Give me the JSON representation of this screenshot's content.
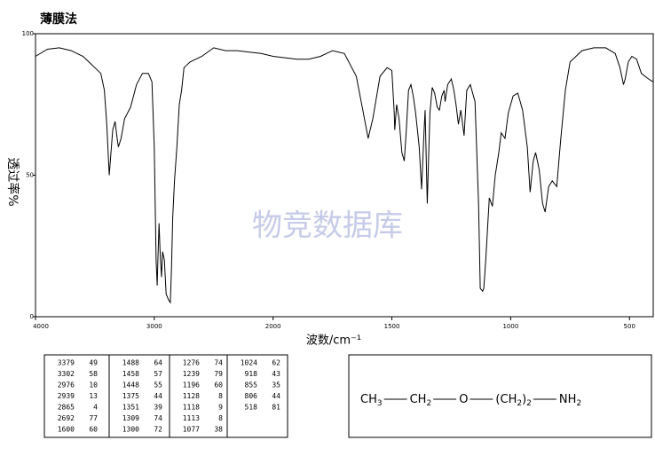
{
  "chart_data": {
    "type": "line",
    "title": "薄膜法",
    "ylabel": "透过率%",
    "xlabel": "波数/cm⁻¹",
    "watermark": "物竞数据库",
    "color": "#000000",
    "xlim": [
      4000,
      400
    ],
    "x_scale_change_at": 2000,
    "xticks": [
      4000,
      3000,
      2000,
      1500,
      1000,
      500
    ],
    "ylim": [
      0,
      100
    ],
    "yticks": [
      0,
      50,
      100
    ],
    "x": [
      4000,
      3900,
      3800,
      3700,
      3600,
      3550,
      3500,
      3450,
      3420,
      3400,
      3385,
      3379,
      3370,
      3350,
      3330,
      3310,
      3302,
      3280,
      3250,
      3200,
      3150,
      3100,
      3050,
      3020,
      3000,
      2985,
      2976,
      2970,
      2960,
      2950,
      2939,
      2930,
      2915,
      2900,
      2880,
      2865,
      2855,
      2845,
      2830,
      2810,
      2790,
      2770,
      2750,
      2700,
      2650,
      2600,
      2500,
      2400,
      2300,
      2200,
      2100,
      2000,
      1900,
      1850,
      1800,
      1750,
      1700,
      1650,
      1620,
      1600,
      1580,
      1550,
      1520,
      1500,
      1490,
      1488,
      1480,
      1470,
      1458,
      1448,
      1440,
      1430,
      1420,
      1410,
      1400,
      1385,
      1375,
      1365,
      1360,
      1351,
      1340,
      1330,
      1320,
      1309,
      1300,
      1290,
      1280,
      1276,
      1265,
      1250,
      1239,
      1230,
      1220,
      1210,
      1196,
      1185,
      1170,
      1150,
      1135,
      1128,
      1118,
      1113,
      1105,
      1090,
      1077,
      1065,
      1050,
      1040,
      1024,
      1010,
      990,
      970,
      950,
      930,
      918,
      905,
      895,
      880,
      866,
      855,
      840,
      825,
      806,
      790,
      770,
      750,
      700,
      650,
      600,
      560,
      540,
      525,
      518,
      505,
      490,
      470,
      450,
      420,
      400
    ],
    "values": [
      92,
      94.5,
      95,
      94,
      92,
      90,
      88,
      86,
      80,
      68,
      55,
      50,
      55,
      66,
      69,
      62,
      60,
      63,
      70,
      74,
      82,
      86,
      86,
      83,
      60,
      20,
      11,
      20,
      33,
      22,
      14,
      23,
      20,
      8,
      6,
      5,
      18,
      35,
      48,
      60,
      75,
      80,
      88,
      90,
      91,
      92,
      95,
      94,
      94,
      93.5,
      93,
      92,
      91,
      91,
      92,
      94,
      93,
      85,
      72,
      63,
      70,
      85,
      88,
      87,
      72,
      66,
      75,
      70,
      58,
      55,
      65,
      80,
      82,
      78,
      72,
      60,
      45,
      65,
      73,
      40,
      72,
      81,
      79,
      74,
      73,
      78,
      80,
      76,
      82,
      84,
      80,
      75,
      68,
      73,
      64,
      80,
      82,
      76,
      40,
      10,
      9,
      10,
      20,
      42,
      39,
      50,
      58,
      65,
      63,
      72,
      78,
      79,
      73,
      60,
      44,
      55,
      58,
      52,
      40,
      37,
      46,
      48,
      46,
      62,
      80,
      90,
      94,
      95,
      95,
      93,
      88,
      82,
      84,
      90,
      92,
      91,
      86,
      84,
      83
    ],
    "peak_table": {
      "columns": [
        [
          [
            "3379",
            "49"
          ],
          [
            "3302",
            "58"
          ],
          [
            "2976",
            "10"
          ],
          [
            "2939",
            "13"
          ],
          [
            "2865",
            "4"
          ],
          [
            "2692",
            "77"
          ],
          [
            "1600",
            "60"
          ]
        ],
        [
          [
            "1488",
            "64"
          ],
          [
            "1458",
            "57"
          ],
          [
            "1448",
            "55"
          ],
          [
            "1375",
            "44"
          ],
          [
            "1351",
            "39"
          ],
          [
            "1309",
            "74"
          ],
          [
            "1300",
            "72"
          ]
        ],
        [
          [
            "1276",
            "74"
          ],
          [
            "1239",
            "79"
          ],
          [
            "1196",
            "60"
          ],
          [
            "1128",
            "8"
          ],
          [
            "1118",
            "9"
          ],
          [
            "1113",
            "8"
          ],
          [
            "1077",
            "38"
          ]
        ],
        [
          [
            "1024",
            "62"
          ],
          [
            "918",
            "43"
          ],
          [
            "855",
            "35"
          ],
          [
            "806",
            "44"
          ],
          [
            "518",
            "81"
          ]
        ]
      ]
    },
    "structure": {
      "groups": [
        [
          [
            "CH",
            "3"
          ]
        ],
        [
          [
            "CH",
            "2"
          ]
        ],
        [
          [
            "O"
          ]
        ],
        [
          [
            "(CH",
            "2"
          ],
          [
            ")",
            "2"
          ]
        ],
        [
          [
            "NH",
            "2"
          ]
        ]
      ]
    }
  }
}
